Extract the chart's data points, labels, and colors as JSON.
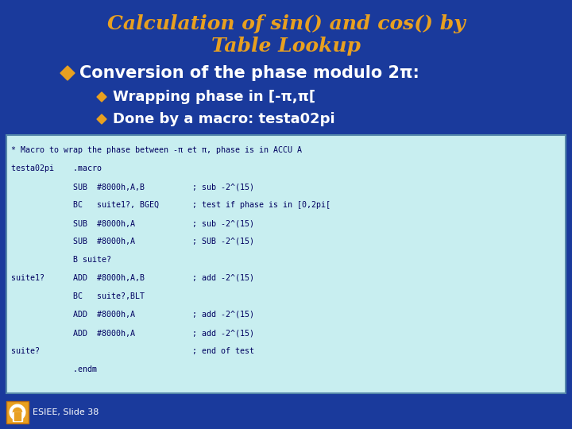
{
  "bg_color": "#1a3a9c",
  "title_line1": "Calculation of sin() and cos() by",
  "title_line2": "Table Lookup",
  "title_color": "#e8a020",
  "title_fontsize": 18,
  "bullet1_text": "Conversion of the phase modulo 2π:",
  "bullet1_color": "#ffffff",
  "bullet1_fontsize": 15,
  "bullet1_diamond_color": "#e8a020",
  "sub_bullet_color": "#ffffff",
  "sub_bullet_diamond_color": "#e8a020",
  "sub1": "Wrapping phase in [-π,π[",
  "sub2": "Done by a macro: testa02pi",
  "sub_fontsize": 13,
  "code_bg": "#c8eef0",
  "code_color": "#000060",
  "code_fontsize": 7.2,
  "code_lines": [
    "* Macro to wrap the phase between -π et π, phase is in ACCU A",
    "testa02pi    .macro",
    "             SUB  #8000h,A,B          ; sub -2^(15)",
    "             BC   suite1?, BGEQ       ; test if phase is in [0,2pi[",
    "             SUB  #8000h,A            ; sub -2^(15)",
    "             SUB  #8000h,A            ; SUB -2^(15)",
    "             B suite?",
    "suite1?      ADD  #8000h,A,B          ; add -2^(15)",
    "             BC   suite?,BLT",
    "             ADD  #8000h,A            ; add -2^(15)",
    "             ADD  #8000h,A            ; add -2^(15)",
    "suite?                                ; end of test",
    "             .endm"
  ],
  "footer_text": "ESIEE, Slide 38",
  "footer_color": "#ffffff",
  "footer_fontsize": 8
}
